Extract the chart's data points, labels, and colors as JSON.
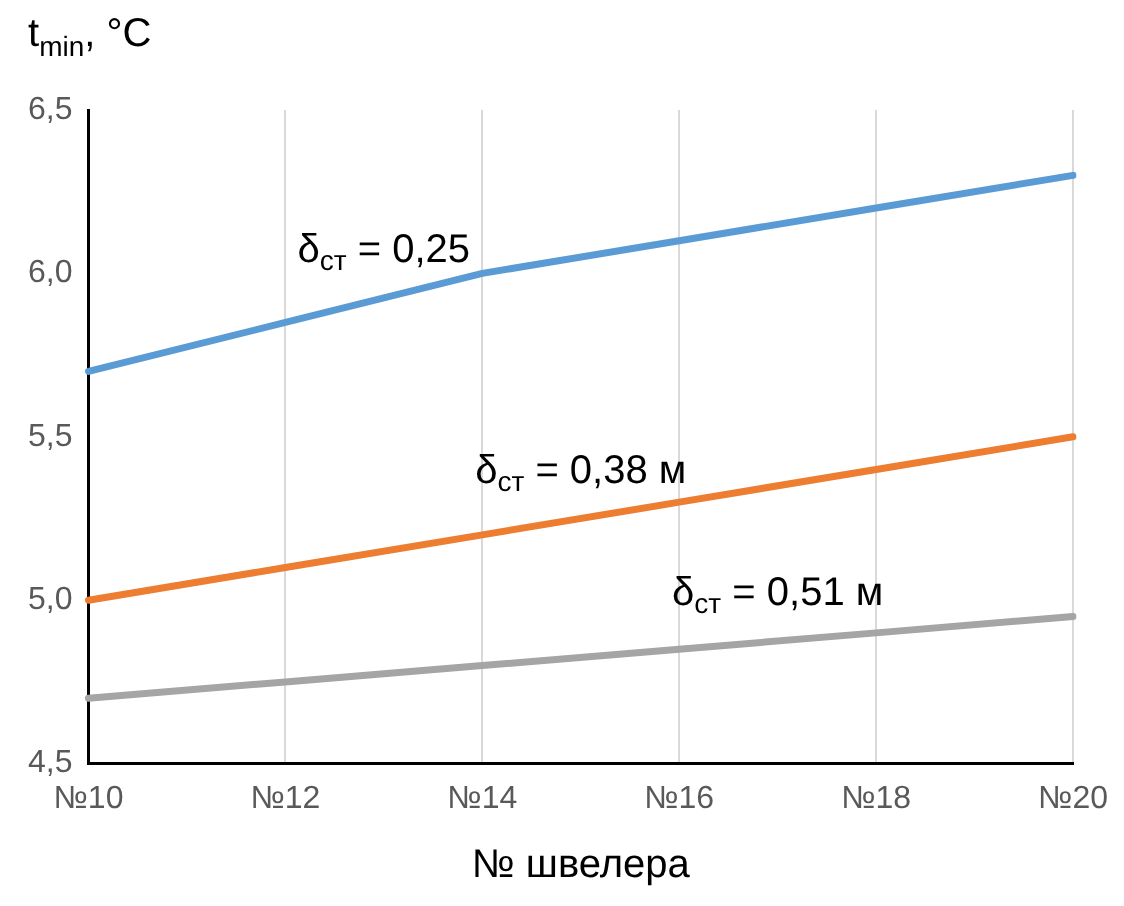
{
  "chart_data": {
    "type": "line",
    "ylabel": "t$_{min}$, °C",
    "xlabel": "№ швелера",
    "categories": [
      "№10",
      "№12",
      "№14",
      "№16",
      "№18",
      "№20"
    ],
    "series": [
      {
        "name": "δ$_{ст}$ = 0,25",
        "color": "#5b9bd5",
        "values": [
          5.7,
          5.85,
          6.0,
          6.1,
          6.2,
          6.3
        ]
      },
      {
        "name": "δ$_{ст}$ = 0,38 м",
        "color": "#ed7d31",
        "values": [
          5.0,
          5.1,
          5.2,
          5.3,
          5.4,
          5.5
        ]
      },
      {
        "name": "δ$_{ст}$ = 0,51 м",
        "color": "#a5a5a5",
        "values": [
          4.7,
          4.75,
          4.8,
          4.85,
          4.9,
          4.95
        ]
      }
    ],
    "ylim": [
      4.5,
      6.5
    ],
    "yticks": [
      {
        "value": 4.5,
        "label": "4,5"
      },
      {
        "value": 5,
        "label": "5,0"
      },
      {
        "value": 5.5,
        "label": "5,5"
      },
      {
        "value": 6,
        "label": "6,0"
      },
      {
        "value": 6.5,
        "label": "6,5"
      }
    ],
    "grid": "x",
    "legend": false,
    "marker": "none",
    "line_style": "solid"
  }
}
